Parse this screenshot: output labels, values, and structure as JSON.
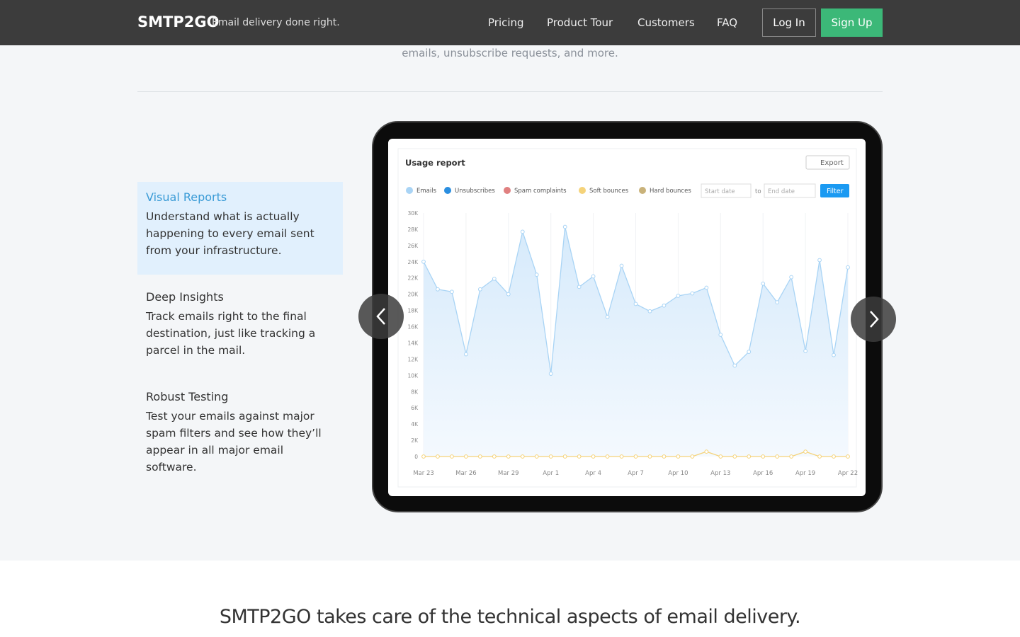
{
  "nav": {
    "logo": "SMTP2GO",
    "tagline": "Email delivery done right.",
    "links": [
      "Pricing",
      "Product Tour",
      "Customers",
      "FAQ"
    ],
    "login": "Log In",
    "signup": "Sign Up"
  },
  "intro": {
    "text": "emails, unsubscribe requests, and more."
  },
  "features": [
    {
      "title": "Visual Reports",
      "body": "Understand what is actually happening to every email sent from your infrastructure."
    },
    {
      "title": "Deep Insights",
      "body": "Track emails right to the final destination, just like tracking a parcel in the mail."
    },
    {
      "title": "Robust Testing",
      "body": "Test your emails against major spam filters and see how they’ll appear in all major email software."
    }
  ],
  "report": {
    "title": "Usage report",
    "export": "Export",
    "legend": [
      {
        "name": "Emails",
        "color": "#a9d4f5"
      },
      {
        "name": "Unsubscribes",
        "color": "#2a8ee0"
      },
      {
        "name": "Spam complaints",
        "color": "#e08080"
      },
      {
        "name": "Soft bounces",
        "color": "#f5d37a"
      },
      {
        "name": "Hard bounces",
        "color": "#c9b27a"
      }
    ],
    "start_date": "Start date",
    "to": "to",
    "end_date": "End date",
    "filter": "Filter",
    "chart_data": {
      "type": "area",
      "categories": [
        "Mar 23",
        null,
        null,
        "Mar 26",
        null,
        null,
        "Mar 29",
        null,
        null,
        "Apr 1",
        null,
        null,
        "Apr 4",
        null,
        null,
        "Apr 7",
        null,
        null,
        "Apr 10",
        null,
        null,
        "Apr 13",
        null,
        null,
        "Apr 16",
        null,
        null,
        "Apr 19",
        null,
        null,
        "Apr 22"
      ],
      "series": [
        {
          "name": "Emails",
          "color": "#a9d4f5",
          "values": [
            24000,
            20600,
            20300,
            12600,
            20600,
            21900,
            20000,
            27700,
            22400,
            10200,
            28300,
            20900,
            22200,
            17200,
            23500,
            18800,
            17900,
            18600,
            19800,
            20100,
            20800,
            15000,
            11200,
            12900,
            21300,
            19000,
            22100,
            13000,
            24200,
            12500,
            23300
          ]
        },
        {
          "name": "Soft bounces",
          "color": "#f5d37a",
          "values": [
            0,
            0,
            0,
            0,
            0,
            0,
            0,
            0,
            0,
            0,
            0,
            0,
            0,
            0,
            0,
            0,
            0,
            0,
            0,
            0,
            600,
            0,
            0,
            0,
            0,
            0,
            0,
            600,
            0,
            0,
            0
          ]
        }
      ],
      "ylim": [
        0,
        30000
      ],
      "yticks": [
        0,
        {
          "value": 2000,
          "label": "2K"
        },
        {
          "value": 4000,
          "label": "4K"
        },
        {
          "value": 6000,
          "label": "6K"
        },
        {
          "value": 8000,
          "label": "8K"
        },
        {
          "value": 10000,
          "label": "10K"
        },
        {
          "value": 12000,
          "label": "12K"
        },
        {
          "value": 14000,
          "label": "14K"
        },
        {
          "value": 16000,
          "label": "16K"
        },
        {
          "value": 18000,
          "label": "18K"
        },
        {
          "value": 20000,
          "label": "20K"
        },
        {
          "value": 22000,
          "label": "22K"
        },
        {
          "value": 24000,
          "label": "24K"
        },
        {
          "value": 26000,
          "label": "26K"
        },
        {
          "value": 28000,
          "label": "28K"
        },
        {
          "value": 30000,
          "label": "30K"
        }
      ]
    }
  },
  "bottom": {
    "heading": "SMTP2GO takes care of the technical aspects of email delivery."
  }
}
